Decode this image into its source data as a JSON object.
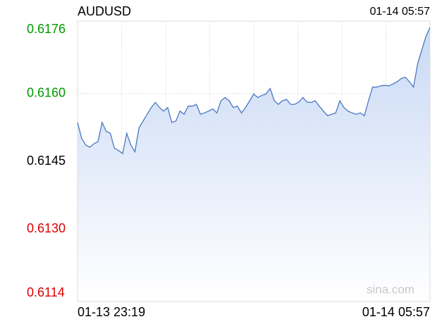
{
  "chart_data": {
    "type": "line",
    "title": "AUDUSD",
    "timestamp": "01-14 05:57",
    "watermark": "sina.com",
    "categories": [
      "01-13 23:19",
      null,
      null,
      null,
      null,
      null,
      null,
      null,
      null,
      null,
      null,
      null,
      null,
      null,
      null,
      null,
      null,
      null,
      null,
      null,
      null,
      null,
      null,
      null,
      null,
      null,
      null,
      null,
      null,
      null,
      null,
      null,
      null,
      null,
      null,
      null,
      null,
      null,
      null,
      null,
      null,
      null,
      null,
      null,
      null,
      null,
      null,
      null,
      null,
      null,
      null,
      null,
      null,
      null,
      null,
      null,
      null,
      null,
      null,
      null,
      null,
      null,
      null,
      null,
      null,
      null,
      null,
      null,
      null,
      null,
      null,
      null,
      null,
      null,
      null,
      null,
      null,
      null,
      null,
      null,
      null,
      null,
      null,
      null,
      null,
      null,
      "01-14 05:57"
    ],
    "series": [
      {
        "color": "#4a78c2",
        "values": [
          0.61536,
          0.61501,
          0.61486,
          0.61481,
          0.61489,
          0.61494,
          0.61536,
          0.61516,
          0.61512,
          0.61479,
          0.61474,
          0.61467,
          0.61512,
          0.61486,
          0.61471,
          0.61524,
          0.61539,
          0.61554,
          0.61569,
          0.6158,
          0.61569,
          0.61561,
          0.61569,
          0.61536,
          0.61539,
          0.61561,
          0.61554,
          0.61572,
          0.61572,
          0.61576,
          0.61554,
          0.61557,
          0.61561,
          0.61566,
          0.61557,
          0.61584,
          0.61591,
          0.61584,
          0.61569,
          0.61572,
          0.61557,
          0.61569,
          0.61584,
          0.61599,
          0.61591,
          0.61596,
          0.61599,
          0.61611,
          0.61584,
          0.61576,
          0.61584,
          0.61587,
          0.61576,
          0.61576,
          0.61581,
          0.61591,
          0.61581,
          0.6158,
          0.61584,
          0.61572,
          0.61561,
          0.61551,
          0.61554,
          0.61557,
          0.61584,
          0.61569,
          0.61561,
          0.61557,
          0.61554,
          0.61557,
          0.61551,
          0.61584,
          0.61614,
          0.61614,
          0.61617,
          0.61618,
          0.61617,
          0.61621,
          0.61626,
          0.61633,
          0.61636,
          0.61626,
          0.61614,
          0.61666,
          0.61696,
          0.61726,
          0.61746
        ]
      }
    ],
    "ylim": [
      0.6114,
      0.6176
    ],
    "yticks": [
      0.6176,
      {
        "value": 0.616,
        "label": "0.6160"
      },
      0.6145,
      {
        "value": 0.613,
        "label": "0.6130"
      },
      0.6114
    ],
    "ytick_colors": [
      "#009900",
      "#009900",
      "#000000",
      "#dd0000",
      "#dd0000"
    ],
    "reference_tick": 2,
    "grid": true
  }
}
